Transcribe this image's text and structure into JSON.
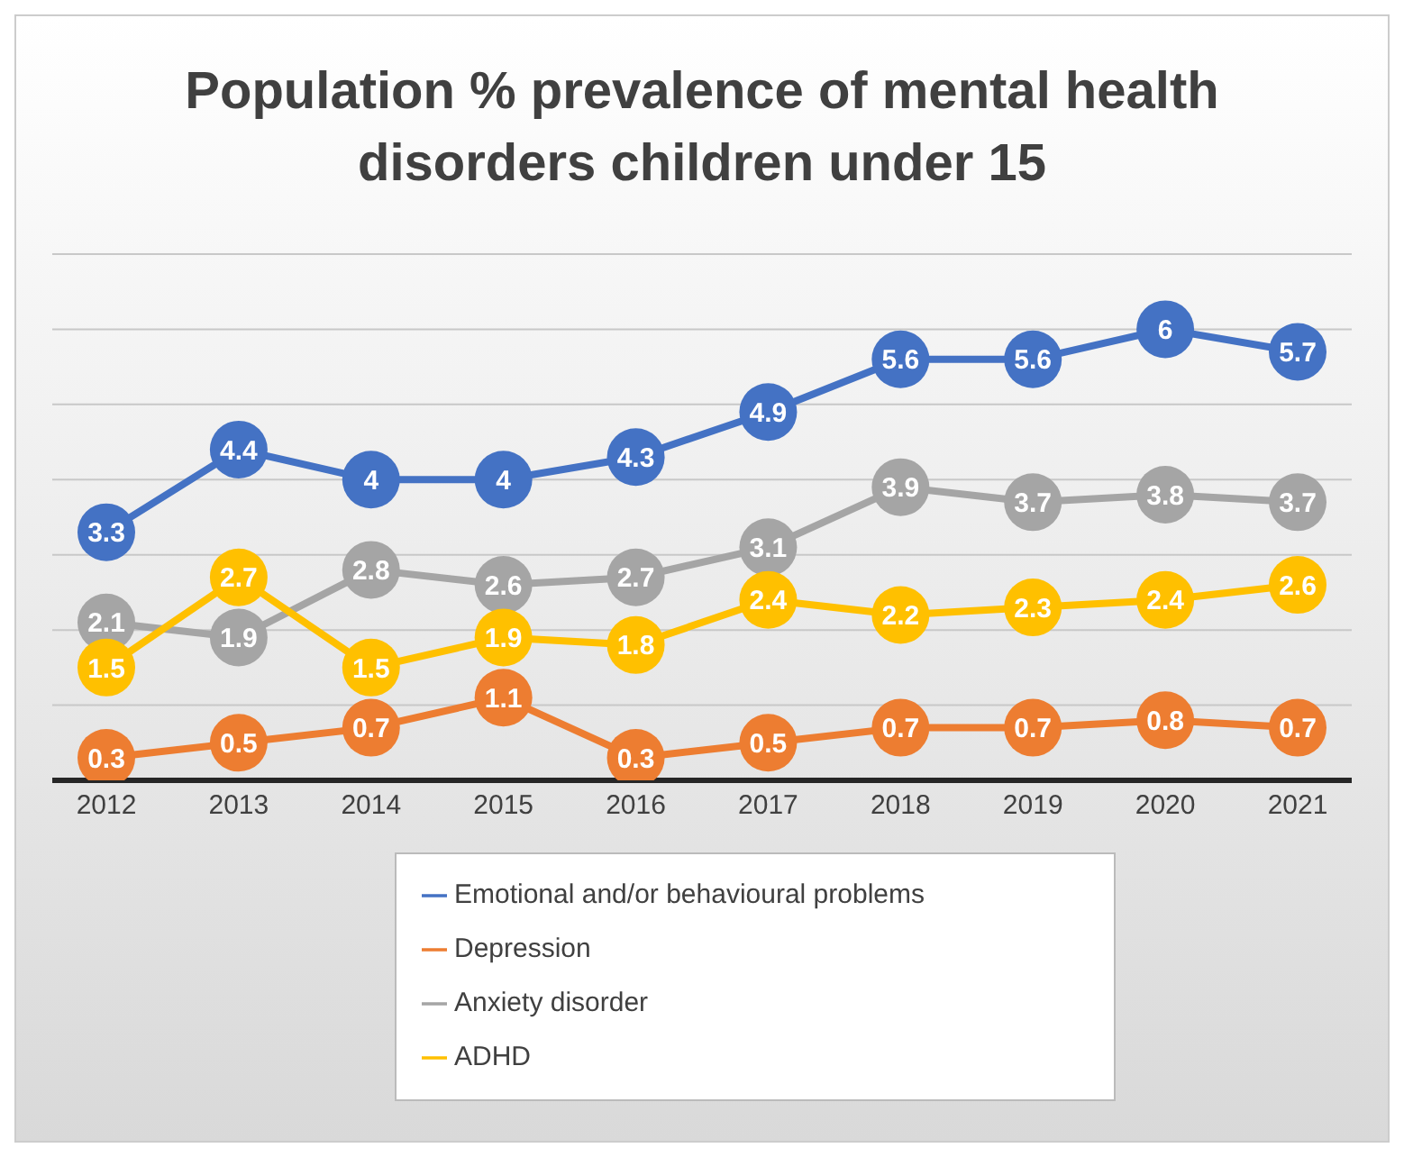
{
  "chart_data": {
    "type": "line",
    "title": "Population % prevalence of mental health disorders children under 15",
    "categories": [
      "2012",
      "2013",
      "2014",
      "2015",
      "2016",
      "2017",
      "2018",
      "2019",
      "2020",
      "2021"
    ],
    "series": [
      {
        "name": "Emotional and/or behavioural problems",
        "color": "#4472c4",
        "values": [
          3.3,
          4.4,
          4,
          4,
          4.3,
          4.9,
          5.6,
          5.6,
          6,
          5.7
        ]
      },
      {
        "name": "Depression",
        "color": "#ed7d31",
        "values": [
          0.3,
          0.5,
          0.7,
          1.1,
          0.3,
          0.5,
          0.7,
          0.7,
          0.8,
          0.7
        ]
      },
      {
        "name": "Anxiety disorder",
        "color": "#a5a5a5",
        "values": [
          2.1,
          1.9,
          2.8,
          2.6,
          2.7,
          3.1,
          3.9,
          3.7,
          3.8,
          3.7
        ]
      },
      {
        "name": "ADHD",
        "color": "#ffc000",
        "values": [
          1.5,
          2.7,
          1.5,
          1.9,
          1.8,
          2.4,
          2.2,
          2.3,
          2.4,
          2.6
        ]
      }
    ],
    "ylim": [
      0,
      7
    ],
    "tick_labels": "x",
    "grid": "y",
    "legend": "bottom",
    "marker": "circle",
    "line_style": "solid",
    "data_labels": true
  }
}
